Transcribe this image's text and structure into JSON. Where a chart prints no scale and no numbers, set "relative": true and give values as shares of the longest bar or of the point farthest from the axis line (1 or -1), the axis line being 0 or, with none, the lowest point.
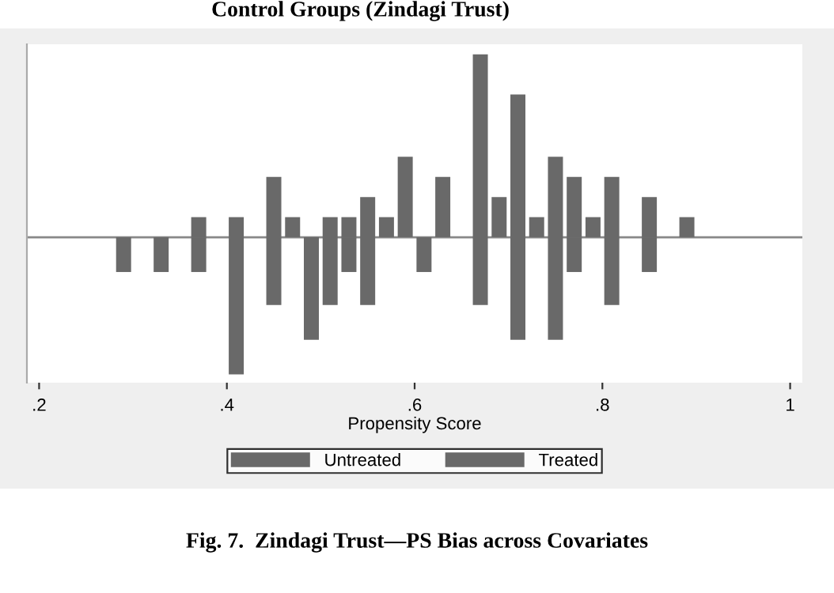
{
  "chart_data": {
    "type": "bar",
    "title": "Control Groups (Zindagi Trust)",
    "xlabel": "Propensity Score",
    "x": [
      0.29,
      0.31,
      0.33,
      0.35,
      0.37,
      0.39,
      0.41,
      0.43,
      0.45,
      0.47,
      0.49,
      0.51,
      0.53,
      0.55,
      0.57,
      0.59,
      0.61,
      0.63,
      0.65,
      0.67,
      0.69,
      0.71,
      0.73,
      0.75,
      0.77,
      0.79,
      0.81,
      0.83,
      0.85,
      0.87,
      0.89
    ],
    "series": [
      {
        "name": "Untreated",
        "color": "#696969",
        "values": [
          -0.19,
          null,
          -0.19,
          null,
          -0.19,
          null,
          -0.75,
          null,
          -0.37,
          null,
          -0.56,
          -0.37,
          -0.19,
          -0.37,
          null,
          null,
          -0.19,
          null,
          null,
          -0.37,
          null,
          -0.56,
          null,
          -0.56,
          -0.19,
          null,
          -0.37,
          null,
          -0.19,
          null,
          null
        ]
      },
      {
        "name": "Treated",
        "color": "#696969",
        "values": [
          null,
          null,
          null,
          null,
          0.11,
          null,
          0.11,
          null,
          0.33,
          0.11,
          null,
          0.11,
          0.11,
          0.22,
          0.11,
          0.44,
          null,
          0.33,
          null,
          1,
          0.22,
          0.78,
          0.11,
          0.44,
          0.33,
          0.11,
          0.33,
          null,
          0.22,
          null,
          0.11
        ]
      }
    ],
    "relative": true,
    "xlim": [
      0.187,
      1.013
    ],
    "xticks": [
      {
        "value": 0.2,
        "label": ".2"
      },
      {
        "value": 0.4,
        "label": ".4"
      },
      {
        "value": 0.6,
        "label": ".6"
      },
      {
        "value": 0.8,
        "label": ".8"
      },
      1
    ],
    "legend": "bottom",
    "grid": false,
    "annotations": [
      "Fig. 7.  Zindagi Trust—PS Bias across Covariates"
    ]
  }
}
